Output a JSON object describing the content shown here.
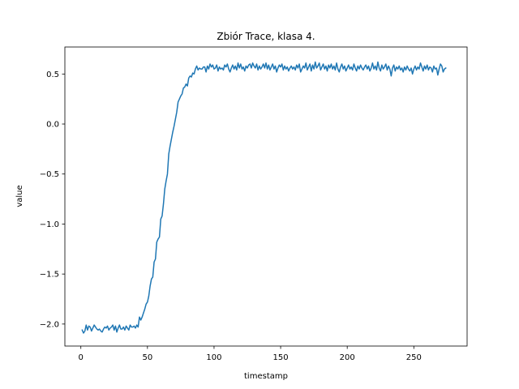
{
  "chart_data": {
    "type": "line",
    "title": "Zbiór Trace, klasa 4.",
    "xlabel": "timestamp",
    "ylabel": "value",
    "xlim": [
      -12,
      290
    ],
    "ylim": [
      -2.22,
      0.77
    ],
    "xticks": [
      0,
      50,
      100,
      150,
      200,
      250
    ],
    "xtick_labels": [
      "0",
      "50",
      "100",
      "150",
      "200",
      "250"
    ],
    "yticks": [
      -2.0,
      -1.5,
      -1.0,
      -0.5,
      0.0,
      0.5
    ],
    "ytick_labels": [
      "−2.0",
      "−1.5",
      "−1.0",
      "−0.5",
      "0.0",
      "0.5"
    ],
    "grid": false,
    "series": [
      {
        "color": "#1f77b4",
        "x_start": 1,
        "x_step": 1,
        "values": [
          -2.06,
          -2.09,
          -2.07,
          -2.01,
          -2.06,
          -2.02,
          -2.03,
          -2.07,
          -2.04,
          -2.01,
          -2.03,
          -2.05,
          -2.06,
          -2.05,
          -2.07,
          -2.08,
          -2.05,
          -2.03,
          -2.04,
          -2.02,
          -2.06,
          -2.04,
          -2.03,
          -2.01,
          -2.06,
          -2.02,
          -2.08,
          -2.04,
          -2.01,
          -2.05,
          -2.05,
          -2.03,
          -2.06,
          -2.02,
          -2.04,
          -2.06,
          -2.01,
          -2.03,
          -2.03,
          -2.02,
          -2.04,
          -2.01,
          -2.03,
          -1.93,
          -1.96,
          -1.93,
          -1.89,
          -1.85,
          -1.8,
          -1.78,
          -1.72,
          -1.62,
          -1.55,
          -1.53,
          -1.38,
          -1.35,
          -1.18,
          -1.15,
          -1.13,
          -0.95,
          -0.92,
          -0.8,
          -0.65,
          -0.57,
          -0.5,
          -0.3,
          -0.22,
          -0.15,
          -0.08,
          -0.02,
          0.05,
          0.12,
          0.22,
          0.25,
          0.28,
          0.3,
          0.36,
          0.37,
          0.4,
          0.38,
          0.46,
          0.48,
          0.47,
          0.51,
          0.5,
          0.55,
          0.58,
          0.54,
          0.56,
          0.55,
          0.55,
          0.57,
          0.57,
          0.52,
          0.58,
          0.55,
          0.6,
          0.57,
          0.59,
          0.55,
          0.56,
          0.59,
          0.53,
          0.57,
          0.55,
          0.56,
          0.54,
          0.59,
          0.57,
          0.6,
          0.55,
          0.52,
          0.56,
          0.59,
          0.55,
          0.58,
          0.54,
          0.61,
          0.56,
          0.6,
          0.55,
          0.57,
          0.53,
          0.58,
          0.56,
          0.59,
          0.6,
          0.56,
          0.61,
          0.58,
          0.56,
          0.6,
          0.54,
          0.58,
          0.55,
          0.57,
          0.6,
          0.56,
          0.61,
          0.55,
          0.59,
          0.54,
          0.57,
          0.6,
          0.55,
          0.58,
          0.52,
          0.56,
          0.59,
          0.57,
          0.6,
          0.54,
          0.58,
          0.55,
          0.57,
          0.53,
          0.56,
          0.58,
          0.55,
          0.57,
          0.54,
          0.59,
          0.56,
          0.6,
          0.52,
          0.55,
          0.58,
          0.56,
          0.61,
          0.54,
          0.57,
          0.6,
          0.53,
          0.59,
          0.55,
          0.62,
          0.56,
          0.58,
          0.61,
          0.54,
          0.57,
          0.6,
          0.55,
          0.58,
          0.53,
          0.59,
          0.56,
          0.6,
          0.55,
          0.58,
          0.54,
          0.61,
          0.55,
          0.52,
          0.57,
          0.6,
          0.55,
          0.58,
          0.53,
          0.56,
          0.59,
          0.55,
          0.57,
          0.54,
          0.6,
          0.56,
          0.53,
          0.58,
          0.55,
          0.59,
          0.56,
          0.54,
          0.57,
          0.59,
          0.55,
          0.58,
          0.53,
          0.56,
          0.61,
          0.55,
          0.58,
          0.54,
          0.62,
          0.56,
          0.53,
          0.59,
          0.55,
          0.57,
          0.6,
          0.54,
          0.58,
          0.55,
          0.48,
          0.56,
          0.59,
          0.53,
          0.57,
          0.55,
          0.58,
          0.54,
          0.56,
          0.52,
          0.57,
          0.54,
          0.58,
          0.55,
          0.53,
          0.56,
          0.5,
          0.55,
          0.58,
          0.54,
          0.57,
          0.55,
          0.61,
          0.57,
          0.53,
          0.58,
          0.55,
          0.59,
          0.54,
          0.57,
          0.56,
          0.52,
          0.58,
          0.55,
          0.56,
          0.49,
          0.55,
          0.6,
          0.58,
          0.52,
          0.55,
          0.56
        ]
      }
    ]
  }
}
